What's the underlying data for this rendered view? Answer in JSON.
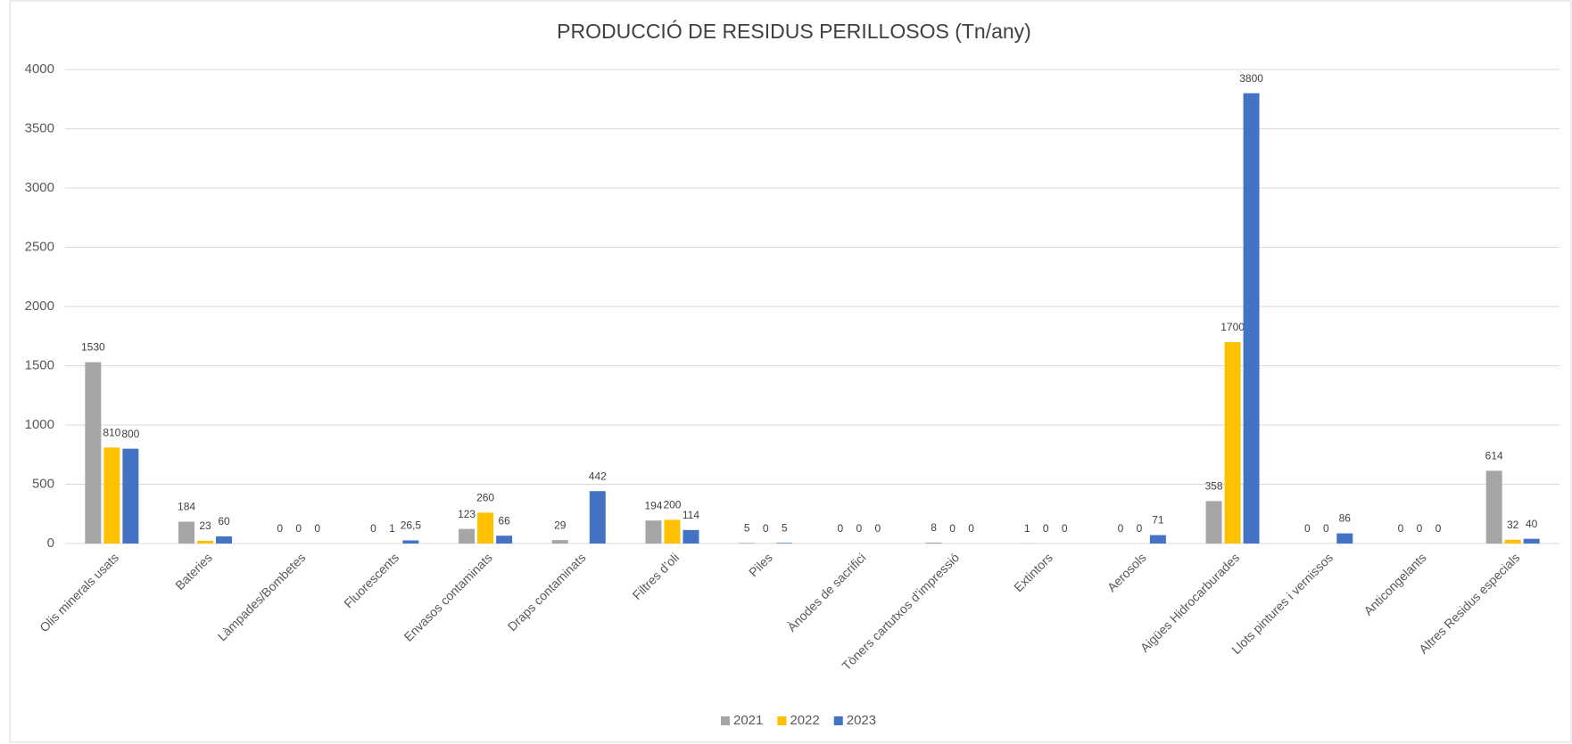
{
  "chart_data": {
    "type": "bar",
    "title": "PRODUCCIÓ DE RESIDUS PERILLOSOS (Tn/any)",
    "categories": [
      "Olis minerals usats",
      "Bateries",
      "Làmpades/Bombetes",
      "Fluorescents",
      "Envasos contaminats",
      "Draps contaminats",
      "Filtres d’oli",
      "Piles",
      "Ànodes de sacrifici",
      "Tòners cartutxos d’impressió",
      "Extintors",
      "Aerosols",
      "Aigües Hidrocarburades",
      "Llots pintures i vernissos",
      "Anticongelants",
      "Altres Residus especials"
    ],
    "series": [
      {
        "name": "2021",
        "color": "#a5a5a5",
        "values": [
          1530,
          184,
          0,
          0,
          123,
          29,
          194,
          5,
          0,
          8,
          1,
          0,
          358,
          0,
          0,
          614
        ]
      },
      {
        "name": "2022",
        "color": "#ffc000",
        "values": [
          810,
          23,
          0,
          1,
          260,
          null,
          200,
          0,
          0,
          0,
          0,
          0,
          1700,
          0,
          0,
          32
        ]
      },
      {
        "name": "2023",
        "color": "#4472c4",
        "values": [
          800,
          60,
          0,
          26.5,
          66,
          442,
          114,
          5,
          0,
          0,
          0,
          71,
          3800,
          86,
          0,
          40
        ],
        "value_labels": [
          "800",
          "60",
          "0",
          "26,5",
          "66",
          "442",
          "114",
          "5",
          "0",
          "0",
          "0",
          "71",
          "3800",
          "86",
          "0",
          "40"
        ]
      }
    ],
    "ylim": [
      0,
      4000
    ],
    "yticks": [
      0,
      500,
      1000,
      1500,
      2000,
      2500,
      3000,
      3500,
      4000
    ],
    "grid": true,
    "legend": "bottom"
  }
}
